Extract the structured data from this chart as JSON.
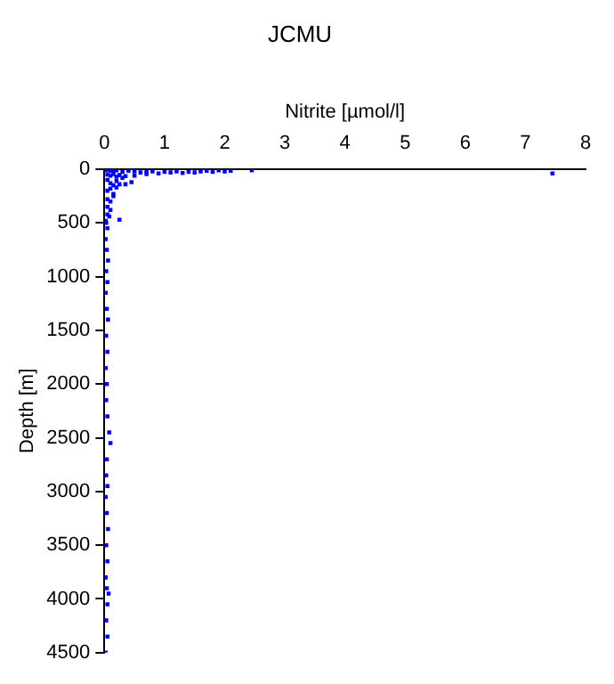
{
  "chart_data": {
    "type": "scatter",
    "title": "JCMU",
    "xlabel": "Nitrite [µmol/l]",
    "ylabel": "Depth [m]",
    "xlim": [
      0,
      8
    ],
    "xticks": [
      0,
      1,
      2,
      3,
      4,
      5,
      6,
      7,
      8
    ],
    "ylim": [
      4500,
      0
    ],
    "yticks": [
      0,
      500,
      1000,
      1500,
      2000,
      2500,
      3000,
      3500,
      4000,
      4500
    ],
    "grid": false,
    "legend": false,
    "marker": "square",
    "series": [
      {
        "color": "#0000ff",
        "x": [
          0.02,
          0.05,
          0.1,
          0.15,
          0.2,
          0.3,
          0.4,
          0.5,
          0.6,
          0.7,
          0.8,
          0.9,
          1.0,
          1.1,
          1.2,
          1.3,
          1.4,
          1.5,
          1.6,
          1.7,
          1.8,
          1.9,
          2.0,
          2.1,
          2.45,
          7.45,
          0.05,
          0.1,
          0.15,
          0.2,
          0.25,
          0.3,
          0.35,
          0.45,
          0.5,
          0.7,
          0.05,
          0.1,
          0.15,
          0.2,
          0.25,
          0.35,
          0.05,
          0.1,
          0.15,
          0.2,
          0.05,
          0.1,
          0.15,
          0.05,
          0.1,
          0.05,
          0.08,
          0.02,
          0.03,
          0.25,
          0.05,
          0.02,
          0.04,
          0.06,
          0.03,
          0.05,
          0.02,
          0.04,
          0.06,
          0.03,
          0.05,
          0.02,
          0.04,
          0.03,
          0.05,
          0.08,
          0.1,
          0.04,
          0.03,
          0.05,
          0.02,
          0.04,
          0.06,
          0.03,
          0.05,
          0.02,
          0.04,
          0.07,
          0.05,
          0.03,
          0.05,
          0.02
        ],
        "values": [
          10,
          5,
          15,
          20,
          10,
          25,
          15,
          20,
          30,
          25,
          20,
          40,
          25,
          30,
          20,
          35,
          25,
          30,
          20,
          15,
          25,
          10,
          20,
          15,
          10,
          40,
          50,
          60,
          45,
          70,
          55,
          80,
          65,
          120,
          60,
          45,
          100,
          130,
          150,
          110,
          140,
          140,
          200,
          180,
          230,
          170,
          280,
          300,
          250,
          350,
          380,
          420,
          440,
          480,
          500,
          470,
          550,
          650,
          750,
          850,
          950,
          1050,
          1150,
          1300,
          1400,
          1550,
          1700,
          1850,
          2000,
          2150,
          2300,
          2450,
          2550,
          2700,
          2850,
          2950,
          3050,
          3200,
          3350,
          3500,
          3650,
          3800,
          3900,
          3950,
          4050,
          4200,
          4350,
          4500
        ]
      }
    ]
  }
}
